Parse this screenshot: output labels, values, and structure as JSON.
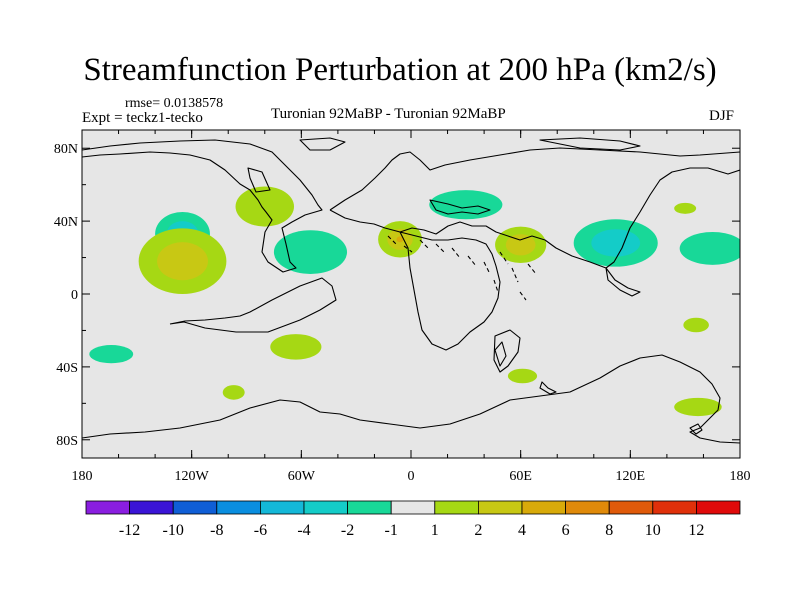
{
  "chart_data": {
    "type": "heatmap",
    "title": "Streamfunction Perturbation at 200 hPa (km2/s)",
    "rmse_label": "rmse= 0.0138578",
    "expt_label": "Expt = teckz1-tecko",
    "center_label": "Turonian  92MaBP - Turonian  92MaBP",
    "season_label": "DJF",
    "x_axis": {
      "range": [
        -180,
        180
      ],
      "ticks": [
        {
          "value": -180,
          "label": "180"
        },
        {
          "value": -120,
          "label": "120W"
        },
        {
          "value": -60,
          "label": "60W"
        },
        {
          "value": 0,
          "label": "0"
        },
        {
          "value": 60,
          "label": "60E"
        },
        {
          "value": 120,
          "label": "120E"
        },
        {
          "value": 180,
          "label": "180"
        }
      ]
    },
    "y_axis": {
      "range": [
        -90,
        90
      ],
      "ticks": [
        {
          "value": 80,
          "label": "80N"
        },
        {
          "value": 40,
          "label": "40N"
        },
        {
          "value": 0,
          "label": "0"
        },
        {
          "value": -40,
          "label": "40S"
        },
        {
          "value": -80,
          "label": "80S"
        }
      ]
    },
    "colorbar": {
      "colors": [
        "#8a1ee0",
        "#3a14d6",
        "#0f5ed6",
        "#0a8ee0",
        "#14b8d8",
        "#14ccc8",
        "#18d898",
        "#e6e6e6",
        "#a6d814",
        "#c8c814",
        "#d8aa0a",
        "#e08a0a",
        "#e05a0a",
        "#e0300a",
        "#e00a0a"
      ],
      "labels": [
        "-12",
        "-10",
        "-8",
        "-6",
        "-4",
        "-2",
        "-1",
        "1",
        "2",
        "4",
        "6",
        "8",
        "10",
        "12"
      ]
    },
    "anomalies": [
      {
        "lon": -125,
        "lat": 33,
        "rlon": 15,
        "rlat": 12,
        "levels": [
          "#18d898",
          "#14ccc8"
        ]
      },
      {
        "lon": -125,
        "lat": 18,
        "rlon": 24,
        "rlat": 18,
        "levels": [
          "#a6d814",
          "#c8c814"
        ]
      },
      {
        "lon": -80,
        "lat": 48,
        "rlon": 16,
        "rlat": 11,
        "levels": [
          "#a6d814"
        ]
      },
      {
        "lon": -55,
        "lat": 23,
        "rlon": 20,
        "rlat": 12,
        "levels": [
          "#18d898"
        ]
      },
      {
        "lon": -6,
        "lat": 30,
        "rlon": 12,
        "rlat": 10,
        "levels": [
          "#a6d814",
          "#c8c814",
          "#d8aa0a"
        ]
      },
      {
        "lon": 30,
        "lat": 49,
        "rlon": 20,
        "rlat": 8,
        "levels": [
          "#18d898"
        ]
      },
      {
        "lon": 60,
        "lat": 27,
        "rlon": 14,
        "rlat": 10,
        "levels": [
          "#a6d814",
          "#c8c814"
        ]
      },
      {
        "lon": 112,
        "lat": 28,
        "rlon": 23,
        "rlat": 13,
        "levels": [
          "#18d898",
          "#14ccc8"
        ]
      },
      {
        "lon": 165,
        "lat": 25,
        "rlon": 18,
        "rlat": 9,
        "levels": [
          "#18d898"
        ]
      },
      {
        "lon": 150,
        "lat": 47,
        "rlon": 6,
        "rlat": 3,
        "levels": [
          "#a6d814"
        ]
      },
      {
        "lon": 156,
        "lat": -17,
        "rlon": 7,
        "rlat": 4,
        "levels": [
          "#a6d814"
        ]
      },
      {
        "lon": -63,
        "lat": -29,
        "rlon": 14,
        "rlat": 7,
        "levels": [
          "#a6d814"
        ]
      },
      {
        "lon": -164,
        "lat": -33,
        "rlon": 12,
        "rlat": 5,
        "levels": [
          "#18d898"
        ]
      },
      {
        "lon": -97,
        "lat": -54,
        "rlon": 6,
        "rlat": 4,
        "levels": [
          "#a6d814"
        ]
      },
      {
        "lon": 61,
        "lat": -45,
        "rlon": 8,
        "rlat": 4,
        "levels": [
          "#a6d814"
        ]
      },
      {
        "lon": 157,
        "lat": -62,
        "rlon": 13,
        "rlat": 5,
        "levels": [
          "#a6d814"
        ]
      }
    ]
  }
}
